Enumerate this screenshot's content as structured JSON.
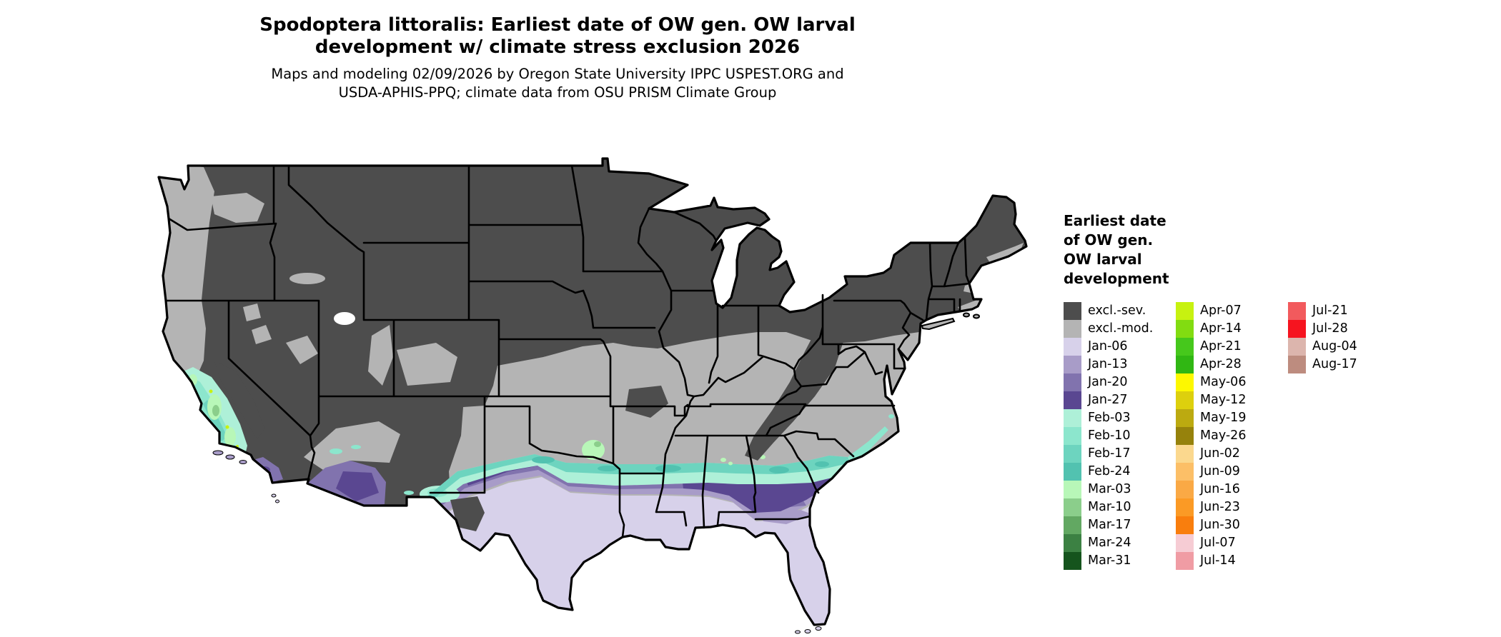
{
  "title": {
    "line1": "Spodoptera littoralis: Earliest date of OW gen. OW larval",
    "line2": "development w/ climate stress exclusion 2026"
  },
  "subtitle": {
    "line1": "Maps and modeling 02/09/2026 by Oregon State University IPPC USPEST.ORG and",
    "line2": "USDA-APHIS-PPQ; climate data from OSU PRISM Climate Group"
  },
  "legend": {
    "title_lines": [
      "Earliest date",
      "of OW gen.",
      "OW larval",
      "development"
    ],
    "columns": [
      {
        "items": [
          {
            "label": "excl.-sev.",
            "color": "#4d4d4d"
          },
          {
            "label": "excl.-mod.",
            "color": "#b4b4b4"
          },
          {
            "label": "Jan-06",
            "color": "#d7d1ea"
          },
          {
            "label": "Jan-13",
            "color": "#a89cc8"
          },
          {
            "label": "Jan-20",
            "color": "#8173ae"
          },
          {
            "label": "Jan-27",
            "color": "#5a4791"
          },
          {
            "label": "Feb-03",
            "color": "#aef0d8"
          },
          {
            "label": "Feb-10",
            "color": "#8ce6cd"
          },
          {
            "label": "Feb-17",
            "color": "#6dd4bf"
          },
          {
            "label": "Feb-24",
            "color": "#52c2b0"
          },
          {
            "label": "Mar-03",
            "color": "#b8f7b8"
          },
          {
            "label": "Mar-10",
            "color": "#8bce8b"
          },
          {
            "label": "Mar-17",
            "color": "#62a862"
          },
          {
            "label": "Mar-24",
            "color": "#3c8143"
          },
          {
            "label": "Mar-31",
            "color": "#15541d"
          }
        ]
      },
      {
        "items": [
          {
            "label": "Apr-07",
            "color": "#c7f210"
          },
          {
            "label": "Apr-14",
            "color": "#82dc11"
          },
          {
            "label": "Apr-21",
            "color": "#46c81c"
          },
          {
            "label": "Apr-28",
            "color": "#30b713"
          },
          {
            "label": "May-06",
            "color": "#fdf800"
          },
          {
            "label": "May-12",
            "color": "#ddd00d"
          },
          {
            "label": "May-19",
            "color": "#bcaa10"
          },
          {
            "label": "May-26",
            "color": "#96820c"
          },
          {
            "label": "Jun-02",
            "color": "#fbd88e"
          },
          {
            "label": "Jun-09",
            "color": "#fcbf67"
          },
          {
            "label": "Jun-16",
            "color": "#faa945"
          },
          {
            "label": "Jun-23",
            "color": "#fb9a25"
          },
          {
            "label": "Jun-30",
            "color": "#f97e0d"
          },
          {
            "label": "Jul-07",
            "color": "#f6ccd4"
          },
          {
            "label": "Jul-14",
            "color": "#f09ca4"
          }
        ]
      },
      {
        "items": [
          {
            "label": "Jul-21",
            "color": "#f25a5d"
          },
          {
            "label": "Jul-28",
            "color": "#f6141f"
          },
          {
            "label": "Aug-04",
            "color": "#dcb5ad"
          },
          {
            "label": "Aug-17",
            "color": "#bd8c7f"
          }
        ]
      }
    ]
  }
}
